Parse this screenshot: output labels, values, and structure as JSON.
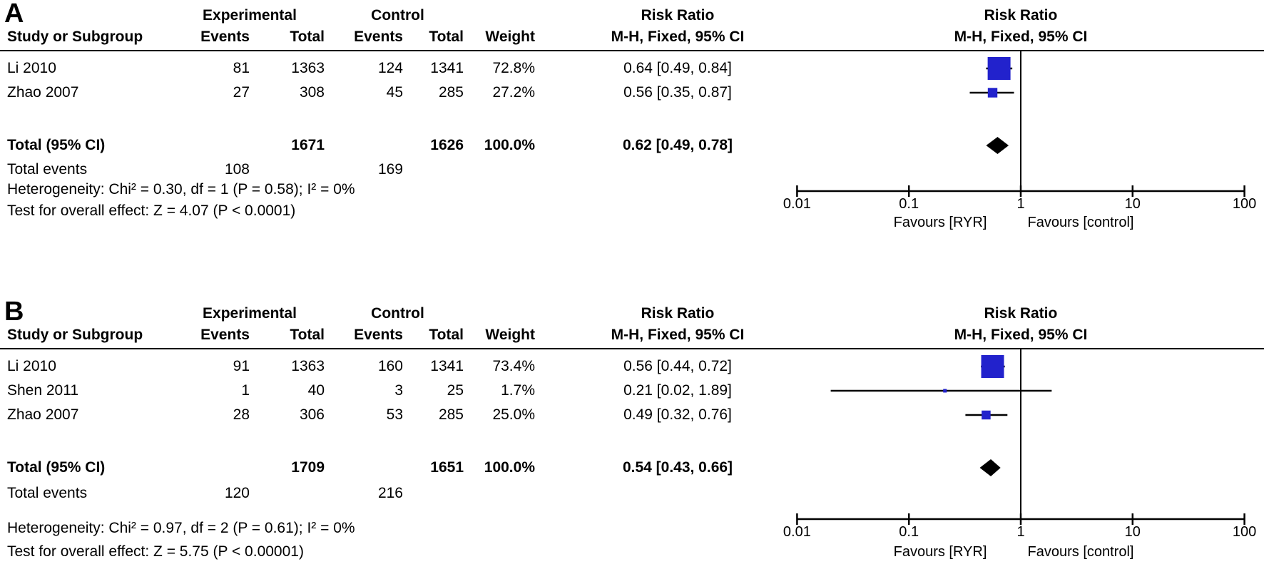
{
  "figure": {
    "columns": {
      "study": "Study or Subgroup",
      "group_exp": "Experimental",
      "group_ctrl": "Control",
      "events": "Events",
      "total": "Total",
      "weight": "Weight",
      "rr_line1": "Risk Ratio",
      "rr_line2": "M-H, Fixed, 95% CI"
    }
  },
  "panels": [
    {
      "label": "A",
      "rows": [
        {
          "study": "Li 2010",
          "events_exp": "81",
          "total_exp": "1363",
          "events_ctrl": "124",
          "total_ctrl": "1341",
          "weight": "72.8%",
          "rr_text": "0.64 [0.49, 0.84]"
        },
        {
          "study": "Zhao 2007",
          "events_exp": "27",
          "total_exp": "308",
          "events_ctrl": "45",
          "total_ctrl": "285",
          "weight": "27.2%",
          "rr_text": "0.56 [0.35, 0.87]"
        }
      ],
      "total_row": {
        "label": "Total (95% CI)",
        "total_exp": "1671",
        "total_ctrl": "1626",
        "weight": "100.0%",
        "rr_text": "0.62 [0.49, 0.78]"
      },
      "total_events": {
        "label": "Total events",
        "exp": "108",
        "ctrl": "169"
      },
      "heterogeneity": "Heterogeneity: Chi² = 0.30, df = 1 (P = 0.58); I² = 0%",
      "overall_effect": "Test for overall effect: Z = 4.07 (P < 0.0001)"
    },
    {
      "label": "B",
      "rows": [
        {
          "study": "Li 2010",
          "events_exp": "91",
          "total_exp": "1363",
          "events_ctrl": "160",
          "total_ctrl": "1341",
          "weight": "73.4%",
          "rr_text": "0.56 [0.44, 0.72]"
        },
        {
          "study": "Shen 2011",
          "events_exp": "1",
          "total_exp": "40",
          "events_ctrl": "3",
          "total_ctrl": "25",
          "weight": "1.7%",
          "rr_text": "0.21 [0.02, 1.89]"
        },
        {
          "study": "Zhao 2007",
          "events_exp": "28",
          "total_exp": "306",
          "events_ctrl": "53",
          "total_ctrl": "285",
          "weight": "25.0%",
          "rr_text": "0.49 [0.32, 0.76]"
        }
      ],
      "total_row": {
        "label": "Total (95% CI)",
        "total_exp": "1709",
        "total_ctrl": "1651",
        "weight": "100.0%",
        "rr_text": "0.54 [0.43, 0.66]"
      },
      "total_events": {
        "label": "Total events",
        "exp": "120",
        "ctrl": "216"
      },
      "heterogeneity": "Heterogeneity: Chi² = 0.97, df = 2 (P = 0.61); I² = 0%",
      "overall_effect": "Test for overall effect: Z = 5.75 (P < 0.00001)"
    }
  ],
  "chart_data": [
    {
      "type": "forest",
      "panel": "A",
      "effect_measure": "Risk Ratio",
      "method": "M-H, Fixed, 95% CI",
      "x_scale": "log10",
      "x_ticks": [
        "0.01",
        "0.1",
        "1",
        "10",
        "100"
      ],
      "x_range": [
        0.01,
        100
      ],
      "studies": [
        {
          "name": "Li 2010",
          "rr": 0.64,
          "ci_low": 0.49,
          "ci_high": 0.84,
          "weight_pct": 72.8
        },
        {
          "name": "Zhao 2007",
          "rr": 0.56,
          "ci_low": 0.35,
          "ci_high": 0.87,
          "weight_pct": 27.2
        }
      ],
      "total": {
        "rr": 0.62,
        "ci_low": 0.49,
        "ci_high": 0.78
      },
      "favours_left": "Favours [RYR]",
      "favours_right": "Favours [control]",
      "marker_color": "#2222cc",
      "diamond_color": "#000000"
    },
    {
      "type": "forest",
      "panel": "B",
      "effect_measure": "Risk Ratio",
      "method": "M-H, Fixed, 95% CI",
      "x_scale": "log10",
      "x_ticks": [
        "0.01",
        "0.1",
        "1",
        "10",
        "100"
      ],
      "x_range": [
        0.01,
        100
      ],
      "studies": [
        {
          "name": "Li 2010",
          "rr": 0.56,
          "ci_low": 0.44,
          "ci_high": 0.72,
          "weight_pct": 73.4
        },
        {
          "name": "Shen 2011",
          "rr": 0.21,
          "ci_low": 0.02,
          "ci_high": 1.89,
          "weight_pct": 1.7
        },
        {
          "name": "Zhao 2007",
          "rr": 0.49,
          "ci_low": 0.32,
          "ci_high": 0.76,
          "weight_pct": 25.0
        }
      ],
      "total": {
        "rr": 0.54,
        "ci_low": 0.43,
        "ci_high": 0.66
      },
      "favours_left": "Favours [RYR]",
      "favours_right": "Favours [control]",
      "marker_color": "#2222cc",
      "diamond_color": "#000000"
    }
  ]
}
